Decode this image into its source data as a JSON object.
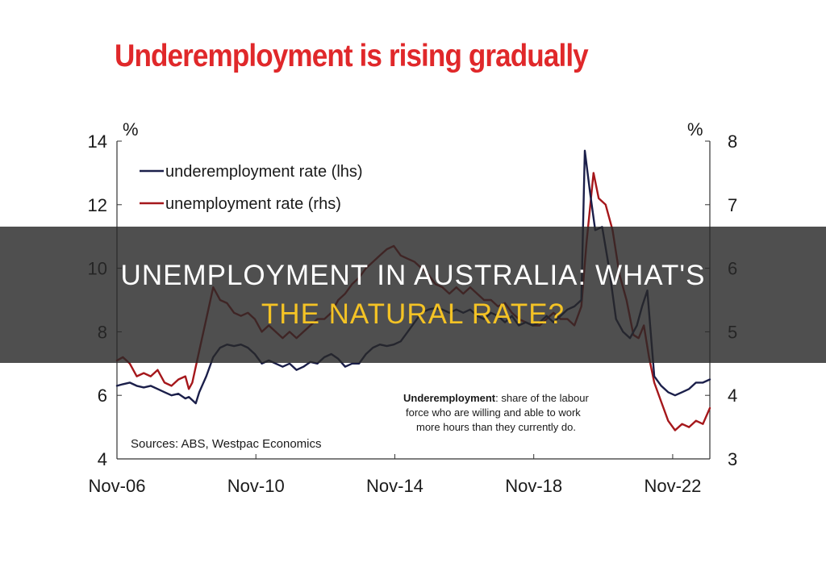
{
  "colors": {
    "title": "#e0282a",
    "underemployment_line": "#1b1f4a",
    "unemployment_line": "#a5171b",
    "banner_background": "#2b2b2b",
    "banner_line_1": "#ffffff",
    "banner_line_2": "#f4c325"
  },
  "banner": {
    "line1": "UNEMPLOYMENT IN AUSTRALIA: WHAT'S",
    "line2": "THE NATURAL RATE?"
  },
  "chart_data": {
    "type": "line",
    "title": "Underemployment is rising gradually",
    "left_axis_unit": "%",
    "right_axis_unit": "%",
    "left_ylim": [
      4,
      14
    ],
    "left_yticks": [
      4,
      6,
      8,
      10,
      12,
      14
    ],
    "right_ylim": [
      3,
      8
    ],
    "right_yticks": [
      3,
      4,
      5,
      6,
      7,
      8
    ],
    "x_range": [
      2006.83,
      2023.9
    ],
    "x_ticks": [
      {
        "label": "Nov-06",
        "x": 2006.83
      },
      {
        "label": "Nov-10",
        "x": 2010.83
      },
      {
        "label": "Nov-14",
        "x": 2014.83
      },
      {
        "label": "Nov-18",
        "x": 2018.83
      },
      {
        "label": "Nov-22",
        "x": 2022.83
      }
    ],
    "legend_position": "top-left",
    "source_note": "Sources: ABS, Westpac Economics",
    "annotation": {
      "term": "Underemployment",
      "text": ": share of the labour",
      "line2": "force who are willing and able to work",
      "line3": "more hours than they currently do."
    },
    "series": [
      {
        "name": "underemployment rate (lhs)",
        "axis": "left",
        "points": [
          [
            2006.83,
            6.3
          ],
          [
            2007.0,
            6.35
          ],
          [
            2007.2,
            6.4
          ],
          [
            2007.4,
            6.3
          ],
          [
            2007.6,
            6.25
          ],
          [
            2007.8,
            6.3
          ],
          [
            2008.0,
            6.2
          ],
          [
            2008.2,
            6.1
          ],
          [
            2008.4,
            6.0
          ],
          [
            2008.6,
            6.05
          ],
          [
            2008.8,
            5.9
          ],
          [
            2008.9,
            5.95
          ],
          [
            2009.0,
            5.85
          ],
          [
            2009.1,
            5.75
          ],
          [
            2009.2,
            6.1
          ],
          [
            2009.4,
            6.6
          ],
          [
            2009.6,
            7.2
          ],
          [
            2009.8,
            7.5
          ],
          [
            2010.0,
            7.6
          ],
          [
            2010.2,
            7.55
          ],
          [
            2010.4,
            7.6
          ],
          [
            2010.6,
            7.5
          ],
          [
            2010.8,
            7.3
          ],
          [
            2011.0,
            7.0
          ],
          [
            2011.2,
            7.1
          ],
          [
            2011.4,
            7.0
          ],
          [
            2011.6,
            6.9
          ],
          [
            2011.8,
            7.0
          ],
          [
            2012.0,
            6.8
          ],
          [
            2012.2,
            6.9
          ],
          [
            2012.4,
            7.05
          ],
          [
            2012.6,
            7.0
          ],
          [
            2012.8,
            7.2
          ],
          [
            2013.0,
            7.3
          ],
          [
            2013.2,
            7.15
          ],
          [
            2013.4,
            6.9
          ],
          [
            2013.6,
            7.0
          ],
          [
            2013.8,
            7.0
          ],
          [
            2014.0,
            7.3
          ],
          [
            2014.2,
            7.5
          ],
          [
            2014.4,
            7.6
          ],
          [
            2014.6,
            7.55
          ],
          [
            2014.8,
            7.6
          ],
          [
            2015.0,
            7.7
          ],
          [
            2015.2,
            8.0
          ],
          [
            2015.4,
            8.3
          ],
          [
            2015.6,
            8.6
          ],
          [
            2015.8,
            8.7
          ],
          [
            2016.0,
            8.75
          ],
          [
            2016.2,
            8.7
          ],
          [
            2016.4,
            8.6
          ],
          [
            2016.6,
            8.7
          ],
          [
            2016.8,
            8.6
          ],
          [
            2017.0,
            8.7
          ],
          [
            2017.2,
            8.5
          ],
          [
            2017.4,
            8.4
          ],
          [
            2017.6,
            8.6
          ],
          [
            2017.8,
            8.5
          ],
          [
            2018.0,
            8.3
          ],
          [
            2018.2,
            8.5
          ],
          [
            2018.4,
            8.2
          ],
          [
            2018.6,
            8.3
          ],
          [
            2018.8,
            8.2
          ],
          [
            2019.0,
            8.3
          ],
          [
            2019.2,
            8.5
          ],
          [
            2019.4,
            8.3
          ],
          [
            2019.6,
            8.5
          ],
          [
            2019.8,
            8.7
          ],
          [
            2020.0,
            8.8
          ],
          [
            2020.2,
            9.0
          ],
          [
            2020.3,
            13.7
          ],
          [
            2020.45,
            12.4
          ],
          [
            2020.6,
            11.2
          ],
          [
            2020.8,
            11.3
          ],
          [
            2021.0,
            10.0
          ],
          [
            2021.2,
            8.4
          ],
          [
            2021.4,
            8.0
          ],
          [
            2021.6,
            7.8
          ],
          [
            2021.8,
            8.2
          ],
          [
            2021.95,
            8.8
          ],
          [
            2022.1,
            9.3
          ],
          [
            2022.3,
            6.6
          ],
          [
            2022.5,
            6.3
          ],
          [
            2022.7,
            6.1
          ],
          [
            2022.9,
            6.0
          ],
          [
            2023.1,
            6.1
          ],
          [
            2023.3,
            6.2
          ],
          [
            2023.5,
            6.4
          ],
          [
            2023.7,
            6.4
          ],
          [
            2023.9,
            6.5
          ]
        ]
      },
      {
        "name": "unemployment rate (rhs)",
        "axis": "right",
        "points": [
          [
            2006.83,
            4.55
          ],
          [
            2007.0,
            4.6
          ],
          [
            2007.2,
            4.5
          ],
          [
            2007.4,
            4.3
          ],
          [
            2007.6,
            4.35
          ],
          [
            2007.8,
            4.3
          ],
          [
            2008.0,
            4.4
          ],
          [
            2008.2,
            4.2
          ],
          [
            2008.4,
            4.15
          ],
          [
            2008.6,
            4.25
          ],
          [
            2008.8,
            4.3
          ],
          [
            2008.9,
            4.1
          ],
          [
            2009.0,
            4.2
          ],
          [
            2009.2,
            4.7
          ],
          [
            2009.4,
            5.2
          ],
          [
            2009.6,
            5.7
          ],
          [
            2009.8,
            5.5
          ],
          [
            2010.0,
            5.45
          ],
          [
            2010.2,
            5.3
          ],
          [
            2010.4,
            5.25
          ],
          [
            2010.6,
            5.3
          ],
          [
            2010.8,
            5.2
          ],
          [
            2011.0,
            5.0
          ],
          [
            2011.2,
            5.1
          ],
          [
            2011.4,
            5.0
          ],
          [
            2011.6,
            4.9
          ],
          [
            2011.8,
            5.0
          ],
          [
            2012.0,
            4.9
          ],
          [
            2012.2,
            5.0
          ],
          [
            2012.4,
            5.1
          ],
          [
            2012.6,
            5.2
          ],
          [
            2012.8,
            5.2
          ],
          [
            2013.0,
            5.3
          ],
          [
            2013.2,
            5.5
          ],
          [
            2013.4,
            5.6
          ],
          [
            2013.6,
            5.75
          ],
          [
            2013.8,
            5.85
          ],
          [
            2014.0,
            6.0
          ],
          [
            2014.2,
            6.1
          ],
          [
            2014.4,
            6.2
          ],
          [
            2014.6,
            6.3
          ],
          [
            2014.8,
            6.35
          ],
          [
            2015.0,
            6.2
          ],
          [
            2015.2,
            6.15
          ],
          [
            2015.4,
            6.1
          ],
          [
            2015.6,
            6.0
          ],
          [
            2015.8,
            5.9
          ],
          [
            2016.0,
            5.75
          ],
          [
            2016.2,
            5.7
          ],
          [
            2016.4,
            5.6
          ],
          [
            2016.6,
            5.7
          ],
          [
            2016.8,
            5.6
          ],
          [
            2017.0,
            5.7
          ],
          [
            2017.2,
            5.6
          ],
          [
            2017.4,
            5.5
          ],
          [
            2017.6,
            5.5
          ],
          [
            2017.8,
            5.4
          ],
          [
            2018.0,
            5.45
          ],
          [
            2018.2,
            5.3
          ],
          [
            2018.4,
            5.2
          ],
          [
            2018.6,
            5.15
          ],
          [
            2018.8,
            5.1
          ],
          [
            2019.0,
            5.1
          ],
          [
            2019.2,
            5.2
          ],
          [
            2019.4,
            5.3
          ],
          [
            2019.6,
            5.2
          ],
          [
            2019.8,
            5.2
          ],
          [
            2020.0,
            5.1
          ],
          [
            2020.2,
            5.4
          ],
          [
            2020.35,
            6.4
          ],
          [
            2020.55,
            7.5
          ],
          [
            2020.7,
            7.1
          ],
          [
            2020.9,
            7.0
          ],
          [
            2021.1,
            6.6
          ],
          [
            2021.3,
            5.9
          ],
          [
            2021.5,
            5.5
          ],
          [
            2021.7,
            4.95
          ],
          [
            2021.85,
            4.9
          ],
          [
            2022.0,
            5.1
          ],
          [
            2022.15,
            4.6
          ],
          [
            2022.3,
            4.2
          ],
          [
            2022.5,
            3.9
          ],
          [
            2022.7,
            3.6
          ],
          [
            2022.9,
            3.45
          ],
          [
            2023.1,
            3.55
          ],
          [
            2023.3,
            3.5
          ],
          [
            2023.5,
            3.6
          ],
          [
            2023.7,
            3.55
          ],
          [
            2023.9,
            3.8
          ]
        ]
      }
    ]
  }
}
